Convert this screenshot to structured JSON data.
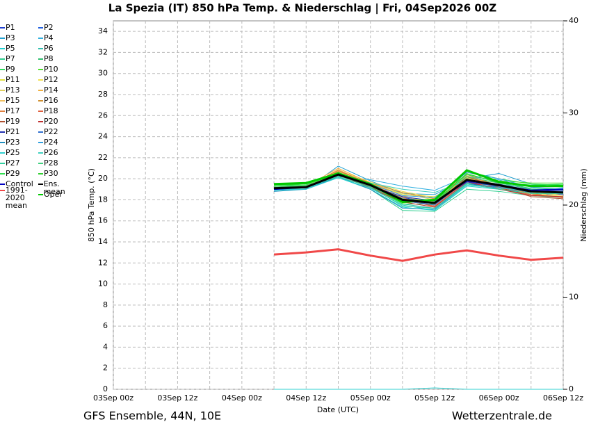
{
  "chart_data": {
    "type": "line",
    "title": "La Spezia  (IT)  850 hPa Temp. & Niederschlag | Fri, 04Sep2026 00Z",
    "subtitle_left": "GFS Ensemble, 44N, 10E",
    "subtitle_right": "Wetterzentrale.de",
    "xlabel": "Date (UTC)",
    "ylabel": "850 hPa Temp. (°C)",
    "y2label": "Niederschlag (mm)",
    "grid": true,
    "xlim": [
      0,
      84
    ],
    "xticks": [
      {
        "value": 0,
        "label": "03Sep 00z"
      },
      {
        "value": 12,
        "label": "03Sep 12z"
      },
      {
        "value": 24,
        "label": "04Sep 00z"
      },
      {
        "value": 36,
        "label": "04Sep 12z"
      },
      {
        "value": 48,
        "label": "05Sep 00z"
      },
      {
        "value": 60,
        "label": "05Sep 12z"
      },
      {
        "value": 72,
        "label": "06Sep 00z"
      },
      {
        "value": 84,
        "label": "06Sep 12z"
      }
    ],
    "ylim": [
      0,
      35
    ],
    "yticks": [
      0,
      2,
      4,
      6,
      8,
      10,
      12,
      14,
      16,
      18,
      20,
      22,
      24,
      26,
      28,
      30,
      32,
      34
    ],
    "y2lim": [
      0,
      40
    ],
    "y2ticks": [
      0,
      10,
      20,
      30,
      40
    ],
    "x": [
      30,
      36,
      42,
      48,
      54,
      60,
      66,
      72,
      78,
      84
    ],
    "series": [
      {
        "name": "P1",
        "color": "#2040d0",
        "values": [
          19.0,
          19.1,
          20.3,
          19.3,
          18.2,
          17.8,
          19.6,
          19.1,
          18.6,
          18.5
        ]
      },
      {
        "name": "P2",
        "color": "#2060e0",
        "values": [
          19.1,
          19.2,
          20.5,
          19.5,
          18.0,
          17.5,
          19.9,
          19.2,
          18.8,
          18.7
        ]
      },
      {
        "name": "P3",
        "color": "#20a0d0",
        "values": [
          18.9,
          19.0,
          21.2,
          19.8,
          18.6,
          18.5,
          20.0,
          20.5,
          19.5,
          19.2
        ]
      },
      {
        "name": "P4",
        "color": "#30b0e0",
        "values": [
          19.0,
          19.1,
          20.2,
          19.9,
          19.3,
          18.9,
          20.2,
          19.9,
          19.0,
          18.9
        ]
      },
      {
        "name": "P5",
        "color": "#20d0d0",
        "values": [
          18.9,
          19.1,
          20.1,
          19.0,
          17.3,
          17.0,
          19.3,
          19.0,
          18.5,
          18.3
        ]
      },
      {
        "name": "P6",
        "color": "#30c0b0",
        "values": [
          19.0,
          19.3,
          20.3,
          19.4,
          17.6,
          17.2,
          19.6,
          19.3,
          18.7,
          18.6
        ]
      },
      {
        "name": "P7",
        "color": "#30d090",
        "values": [
          19.1,
          19.2,
          20.2,
          19.0,
          17.0,
          16.9,
          19.0,
          18.8,
          18.4,
          18.2
        ]
      },
      {
        "name": "P8",
        "color": "#30c070",
        "values": [
          19.2,
          19.4,
          20.6,
          19.5,
          18.1,
          17.9,
          20.1,
          19.6,
          19.0,
          18.9
        ]
      },
      {
        "name": "P9",
        "color": "#30e060",
        "values": [
          19.3,
          19.5,
          20.4,
          19.2,
          17.6,
          17.6,
          20.7,
          20.0,
          19.5,
          19.4
        ]
      },
      {
        "name": "P10",
        "color": "#50e030",
        "values": [
          19.4,
          19.6,
          20.5,
          19.3,
          17.7,
          17.9,
          20.8,
          19.8,
          19.6,
          19.6
        ]
      },
      {
        "name": "P11",
        "color": "#e0e040",
        "values": [
          19.1,
          19.3,
          20.7,
          19.6,
          18.5,
          18.3,
          20.1,
          19.4,
          18.9,
          18.4
        ]
      },
      {
        "name": "P12",
        "color": "#f0e050",
        "values": [
          19.0,
          19.2,
          20.8,
          19.7,
          18.8,
          18.2,
          19.9,
          19.3,
          18.7,
          18.3
        ]
      },
      {
        "name": "P13",
        "color": "#e0d060",
        "values": [
          19.1,
          19.2,
          20.6,
          19.5,
          18.6,
          18.0,
          20.0,
          19.5,
          18.8,
          18.4
        ]
      },
      {
        "name": "P14",
        "color": "#f0b040",
        "values": [
          19.2,
          19.3,
          21.0,
          19.6,
          18.4,
          17.6,
          20.3,
          19.2,
          18.6,
          18.2
        ]
      },
      {
        "name": "P15",
        "color": "#f0c060",
        "values": [
          19.0,
          19.1,
          20.9,
          19.4,
          18.3,
          17.8,
          20.2,
          19.4,
          18.5,
          18.3
        ]
      },
      {
        "name": "P16",
        "color": "#d09030",
        "values": [
          19.1,
          19.2,
          20.7,
          19.6,
          18.7,
          18.1,
          20.4,
          19.3,
          18.6,
          18.2
        ]
      },
      {
        "name": "P17",
        "color": "#e08040",
        "values": [
          19.0,
          19.3,
          20.8,
          19.5,
          18.2,
          17.3,
          20.0,
          19.1,
          18.4,
          18.3
        ]
      },
      {
        "name": "P18",
        "color": "#e06040",
        "values": [
          19.1,
          19.2,
          20.6,
          19.3,
          18.0,
          17.4,
          19.8,
          19.0,
          18.5,
          18.2
        ]
      },
      {
        "name": "P19",
        "color": "#b05030",
        "values": [
          19.0,
          19.1,
          20.5,
          19.2,
          17.9,
          17.5,
          20.2,
          19.2,
          18.3,
          18.1
        ]
      },
      {
        "name": "P20",
        "color": "#c03030",
        "values": [
          19.1,
          19.2,
          20.4,
          19.1,
          17.8,
          17.3,
          19.7,
          19.0,
          18.4,
          18.3
        ]
      },
      {
        "name": "P21",
        "color": "#2030b0",
        "values": [
          19.0,
          19.2,
          20.3,
          19.3,
          18.3,
          17.9,
          19.7,
          19.3,
          18.8,
          18.9
        ]
      },
      {
        "name": "P22",
        "color": "#3070d0",
        "values": [
          19.1,
          19.3,
          20.4,
          19.4,
          17.9,
          17.5,
          19.9,
          19.5,
          18.9,
          19.0
        ]
      },
      {
        "name": "P23",
        "color": "#2090c0",
        "values": [
          18.8,
          19.0,
          20.2,
          19.0,
          17.2,
          17.1,
          19.5,
          19.2,
          18.7,
          18.8
        ]
      },
      {
        "name": "P24",
        "color": "#30a0e0",
        "values": [
          19.0,
          19.1,
          20.4,
          19.5,
          18.4,
          18.2,
          20.6,
          20.0,
          19.2,
          19.0
        ]
      },
      {
        "name": "P25",
        "color": "#30d0d0",
        "values": [
          18.9,
          19.0,
          20.1,
          19.1,
          17.5,
          17.0,
          19.4,
          19.1,
          18.9,
          19.1
        ]
      },
      {
        "name": "P26",
        "color": "#40d0c0",
        "values": [
          19.0,
          19.1,
          20.3,
          19.6,
          19.0,
          18.7,
          19.8,
          19.4,
          19.3,
          19.3
        ]
      },
      {
        "name": "P27",
        "color": "#30d0a0",
        "values": [
          19.1,
          19.2,
          20.2,
          19.2,
          17.4,
          17.2,
          19.5,
          19.0,
          18.6,
          18.6
        ]
      },
      {
        "name": "P28",
        "color": "#40d080",
        "values": [
          19.2,
          19.3,
          20.3,
          19.3,
          17.8,
          18.0,
          20.2,
          19.6,
          19.1,
          19.0
        ]
      },
      {
        "name": "P29",
        "color": "#30e050",
        "values": [
          19.3,
          19.4,
          20.5,
          19.4,
          17.9,
          17.7,
          20.4,
          19.7,
          19.4,
          19.5
        ]
      },
      {
        "name": "P30",
        "color": "#30d030",
        "values": [
          19.4,
          19.5,
          20.6,
          19.5,
          18.0,
          17.8,
          20.5,
          19.6,
          19.3,
          19.4
        ]
      },
      {
        "name": "Control",
        "color": "#0000c0",
        "values": [
          19.0,
          19.2,
          20.4,
          19.4,
          18.0,
          17.7,
          19.8,
          19.4,
          18.9,
          19.0
        ]
      },
      {
        "name": "Ens. mean",
        "color": "#000000",
        "values": [
          19.1,
          19.2,
          20.4,
          19.4,
          18.0,
          17.7,
          19.9,
          19.4,
          18.8,
          18.7
        ]
      },
      {
        "name": "1991-2020 mean",
        "color": "#f04848",
        "values": [
          12.8,
          13.0,
          13.3,
          12.7,
          12.2,
          12.8,
          13.2,
          12.7,
          12.3,
          12.5
        ]
      },
      {
        "name": "Oper",
        "color": "#00c800",
        "values": [
          19.5,
          19.6,
          20.5,
          19.5,
          17.8,
          18.0,
          20.8,
          19.7,
          19.3,
          19.3
        ]
      },
      {
        "color": "#30d0d0",
        "axis": "y2",
        "values": [
          0,
          0,
          0,
          0,
          0,
          0.15,
          0,
          0,
          0,
          0
        ]
      }
    ]
  }
}
